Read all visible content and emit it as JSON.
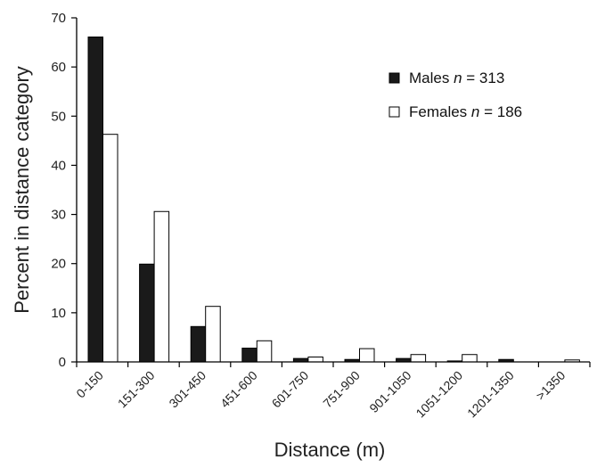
{
  "chart_data": {
    "type": "bar",
    "xlabel": "Distance (m)",
    "ylabel": "Percent in distance category",
    "ylim": [
      0,
      70
    ],
    "yticks": [
      0,
      10,
      20,
      30,
      40,
      50,
      60,
      70
    ],
    "grid": false,
    "legend_position": "top-right",
    "categories": [
      "0-150",
      "151-300",
      "301-450",
      "451-600",
      "601-750",
      "751-900",
      "901-1050",
      "1051-1200",
      "1201-1350",
      ">1350"
    ],
    "series": [
      {
        "name": "Males",
        "legend_prefix": "Males ",
        "legend_n_symbol": "n",
        "legend_n_text": " = 313",
        "fill": "#1a1a1a",
        "values": [
          66.1,
          19.9,
          7.2,
          2.8,
          0.7,
          0.5,
          0.7,
          0.2,
          0.5,
          0.0
        ]
      },
      {
        "name": "Females",
        "legend_prefix": "Females ",
        "legend_n_symbol": "n",
        "legend_n_text": " = 186",
        "fill": "#ffffff",
        "values": [
          46.3,
          30.6,
          11.3,
          4.3,
          1.0,
          2.7,
          1.5,
          1.5,
          0.0,
          0.4
        ]
      }
    ]
  }
}
